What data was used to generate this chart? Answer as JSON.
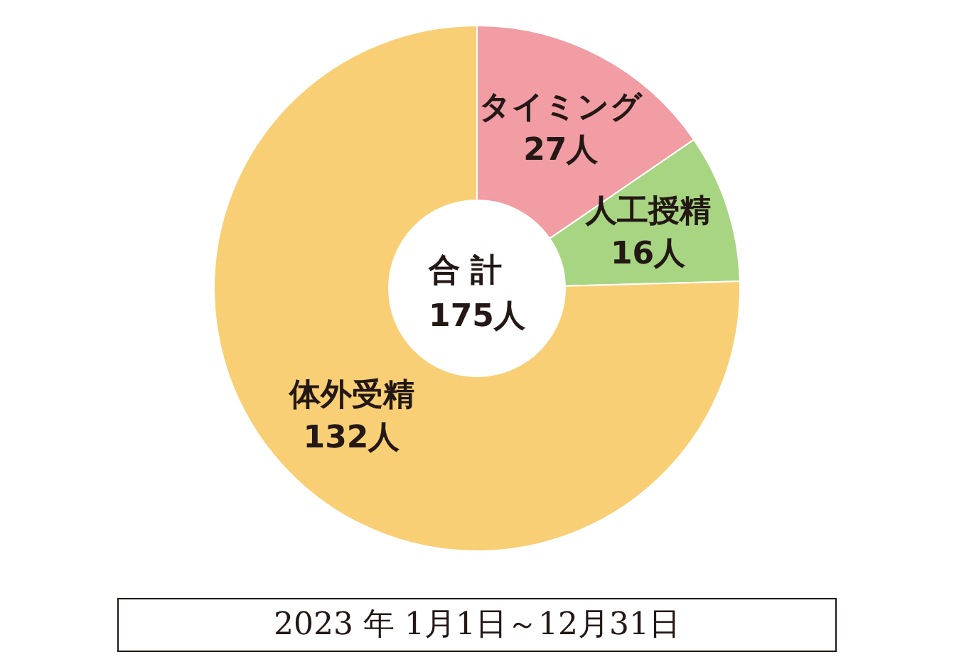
{
  "chart_data": {
    "type": "donut",
    "categories": [
      "タイミング",
      "人工授精",
      "体外受精"
    ],
    "values": [
      27,
      16,
      132
    ],
    "value_labels": [
      "27人",
      "16人",
      "132人"
    ],
    "colors": [
      "#f29ca3",
      "#a8d582",
      "#f9cf75"
    ],
    "annotations": [
      "合 計\n175人",
      "2023 年 1月1日～12月31日"
    ]
  }
}
